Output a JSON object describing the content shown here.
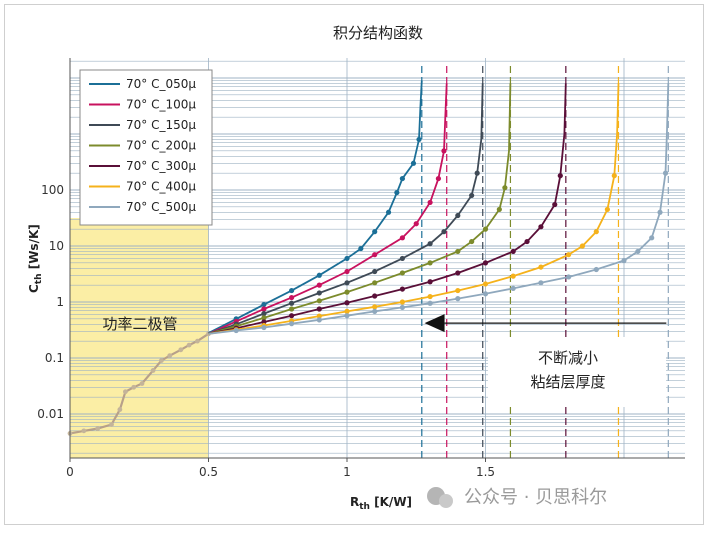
{
  "chart_data": {
    "type": "line",
    "title": "积分结构函数",
    "xlabel": "R",
    "xlabel_sub": "th",
    "xlabel_unit": " [K/W]",
    "ylabel": "C",
    "ylabel_sub": "th",
    "ylabel_unit": " [Ws/K]",
    "x_ticks": [
      "0",
      "0.5",
      "1",
      "1.5"
    ],
    "x_tick_values": [
      0,
      0.5,
      1,
      1.5
    ],
    "y_ticks": [
      "0.01",
      "0.1",
      "1",
      "10",
      "100"
    ],
    "y_tick_values": [
      0.01,
      0.1,
      1,
      10,
      100
    ],
    "xlim": [
      0,
      2.2
    ],
    "ylim": [
      0.002,
      15000
    ],
    "y_scale": "log",
    "grid": true,
    "legend_position": "top-left",
    "highlight_region": {
      "x_range": [
        0,
        0.5
      ],
      "label": "功率二极管",
      "color": "#fbeea5"
    },
    "annotation": {
      "lines": [
        "不断减小",
        "粘结层厚度"
      ],
      "arrow_from_x": 2.16,
      "arrow_to_x": 1.28,
      "arrow_y": 0.42
    },
    "series": [
      {
        "name": "70° C_050μ",
        "color": "#1b6f97",
        "asymptote": 1.27,
        "points": [
          [
            0.5,
            0.28
          ],
          [
            0.6,
            0.5
          ],
          [
            0.7,
            0.9
          ],
          [
            0.8,
            1.6
          ],
          [
            0.9,
            3
          ],
          [
            1.0,
            6
          ],
          [
            1.05,
            9
          ],
          [
            1.1,
            18
          ],
          [
            1.15,
            40
          ],
          [
            1.18,
            90
          ],
          [
            1.2,
            160
          ],
          [
            1.24,
            300
          ],
          [
            1.26,
            800
          ],
          [
            1.265,
            3000
          ],
          [
            1.27,
            9000
          ]
        ]
      },
      {
        "name": "70° C_100μ",
        "color": "#c8125e",
        "asymptote": 1.36,
        "points": [
          [
            0.5,
            0.27
          ],
          [
            0.6,
            0.45
          ],
          [
            0.7,
            0.75
          ],
          [
            0.8,
            1.2
          ],
          [
            0.9,
            2
          ],
          [
            1.0,
            3.5
          ],
          [
            1.1,
            7
          ],
          [
            1.2,
            14
          ],
          [
            1.25,
            25
          ],
          [
            1.3,
            60
          ],
          [
            1.33,
            160
          ],
          [
            1.35,
            500
          ],
          [
            1.355,
            2000
          ],
          [
            1.36,
            8000
          ]
        ]
      },
      {
        "name": "70° C_150μ",
        "color": "#3f4a56",
        "asymptote": 1.49,
        "points": [
          [
            0.5,
            0.27
          ],
          [
            0.6,
            0.4
          ],
          [
            0.7,
            0.62
          ],
          [
            0.8,
            0.95
          ],
          [
            0.9,
            1.45
          ],
          [
            1.0,
            2.2
          ],
          [
            1.1,
            3.5
          ],
          [
            1.2,
            6
          ],
          [
            1.3,
            11
          ],
          [
            1.35,
            18
          ],
          [
            1.4,
            35
          ],
          [
            1.45,
            80
          ],
          [
            1.47,
            200
          ],
          [
            1.485,
            800
          ],
          [
            1.49,
            8000
          ]
        ]
      },
      {
        "name": "70° C_200μ",
        "color": "#7c8b2c",
        "asymptote": 1.59,
        "points": [
          [
            0.5,
            0.27
          ],
          [
            0.6,
            0.37
          ],
          [
            0.7,
            0.52
          ],
          [
            0.8,
            0.75
          ],
          [
            0.9,
            1.05
          ],
          [
            1.0,
            1.5
          ],
          [
            1.1,
            2.2
          ],
          [
            1.2,
            3.3
          ],
          [
            1.3,
            5
          ],
          [
            1.4,
            8
          ],
          [
            1.45,
            12
          ],
          [
            1.5,
            20
          ],
          [
            1.55,
            45
          ],
          [
            1.57,
            110
          ],
          [
            1.585,
            500
          ],
          [
            1.59,
            8000
          ]
        ]
      },
      {
        "name": "70° C_300μ",
        "color": "#5a0f38",
        "asymptote": 1.79,
        "points": [
          [
            0.5,
            0.27
          ],
          [
            0.6,
            0.34
          ],
          [
            0.7,
            0.44
          ],
          [
            0.8,
            0.57
          ],
          [
            0.9,
            0.75
          ],
          [
            1.0,
            0.97
          ],
          [
            1.1,
            1.28
          ],
          [
            1.2,
            1.7
          ],
          [
            1.3,
            2.3
          ],
          [
            1.4,
            3.3
          ],
          [
            1.5,
            5
          ],
          [
            1.6,
            8
          ],
          [
            1.65,
            12
          ],
          [
            1.7,
            22
          ],
          [
            1.75,
            55
          ],
          [
            1.77,
            180
          ],
          [
            1.785,
            1000
          ],
          [
            1.79,
            8000
          ]
        ]
      },
      {
        "name": "70° C_400μ",
        "color": "#f5b21b",
        "asymptote": 1.98,
        "points": [
          [
            0.5,
            0.27
          ],
          [
            0.6,
            0.32
          ],
          [
            0.7,
            0.38
          ],
          [
            0.8,
            0.46
          ],
          [
            0.9,
            0.56
          ],
          [
            1.0,
            0.68
          ],
          [
            1.1,
            0.82
          ],
          [
            1.2,
            1.0
          ],
          [
            1.3,
            1.25
          ],
          [
            1.4,
            1.6
          ],
          [
            1.5,
            2.1
          ],
          [
            1.6,
            2.9
          ],
          [
            1.7,
            4.2
          ],
          [
            1.8,
            7
          ],
          [
            1.85,
            10
          ],
          [
            1.9,
            18
          ],
          [
            1.94,
            45
          ],
          [
            1.965,
            180
          ],
          [
            1.975,
            1000
          ],
          [
            1.98,
            8000
          ]
        ]
      },
      {
        "name": "70° C_500μ",
        "color": "#8fa8bd",
        "asymptote": 2.16,
        "points": [
          [
            0.5,
            0.27
          ],
          [
            0.6,
            0.31
          ],
          [
            0.7,
            0.35
          ],
          [
            0.8,
            0.41
          ],
          [
            0.9,
            0.48
          ],
          [
            1.0,
            0.57
          ],
          [
            1.1,
            0.68
          ],
          [
            1.2,
            0.8
          ],
          [
            1.3,
            0.95
          ],
          [
            1.4,
            1.15
          ],
          [
            1.5,
            1.4
          ],
          [
            1.6,
            1.75
          ],
          [
            1.7,
            2.2
          ],
          [
            1.8,
            2.8
          ],
          [
            1.9,
            3.8
          ],
          [
            2.0,
            5.5
          ],
          [
            2.05,
            8
          ],
          [
            2.1,
            14
          ],
          [
            2.13,
            40
          ],
          [
            2.15,
            200
          ],
          [
            2.155,
            1000
          ],
          [
            2.16,
            8000
          ]
        ]
      }
    ],
    "diode_points": [
      [
        0.0,
        0.0045
      ],
      [
        0.05,
        0.005
      ],
      [
        0.1,
        0.0055
      ],
      [
        0.15,
        0.0065
      ],
      [
        0.18,
        0.012
      ],
      [
        0.2,
        0.025
      ],
      [
        0.23,
        0.03
      ],
      [
        0.26,
        0.035
      ],
      [
        0.3,
        0.06
      ],
      [
        0.33,
        0.09
      ],
      [
        0.36,
        0.11
      ],
      [
        0.4,
        0.14
      ],
      [
        0.43,
        0.17
      ],
      [
        0.46,
        0.2
      ],
      [
        0.5,
        0.27
      ]
    ]
  },
  "watermark": "公众号 · 贝思科尔",
  "colors": {
    "highlight": "#fbeea5",
    "grid": "#9fb3c4",
    "axis": "#555555"
  }
}
